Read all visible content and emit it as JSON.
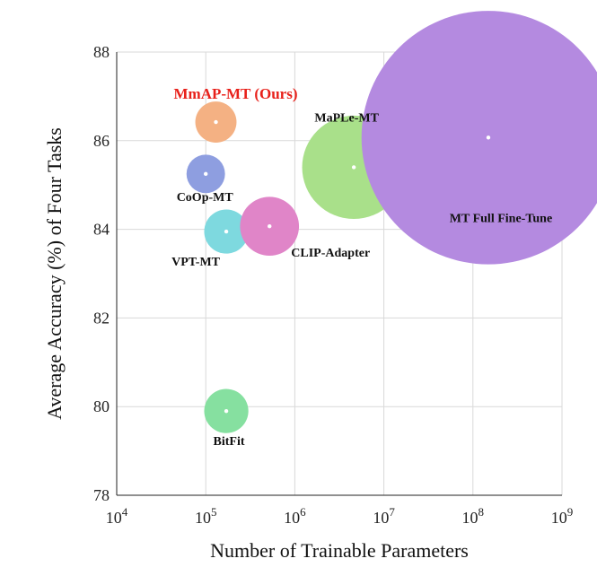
{
  "chart_data": {
    "type": "scatter",
    "xlabel": "Number of Trainable Parameters",
    "ylabel": "Average Accuracy (%) of Four Tasks",
    "x_scale": "log",
    "xlim": [
      10000,
      1000000000
    ],
    "ylim": [
      78,
      88
    ],
    "x_ticks": [
      {
        "base": "10",
        "exp": "4",
        "value": 10000
      },
      {
        "base": "10",
        "exp": "5",
        "value": 100000
      },
      {
        "base": "10",
        "exp": "6",
        "value": 1000000
      },
      {
        "base": "10",
        "exp": "7",
        "value": 10000000
      },
      {
        "base": "10",
        "exp": "8",
        "value": 100000000
      },
      {
        "base": "10",
        "exp": "9",
        "value": 1000000000
      }
    ],
    "y_ticks": [
      "78",
      "80",
      "82",
      "84",
      "86",
      "88"
    ],
    "grid": true,
    "points": [
      {
        "label": "MmAP-MT (Ours)",
        "x": 130000,
        "y": 86.42,
        "color": "#f4b183",
        "highlight": true
      },
      {
        "label": "CoOp-MT",
        "x": 100000,
        "y": 85.25,
        "color": "#8e9ee0",
        "highlight": false
      },
      {
        "label": "VPT-MT",
        "x": 170000,
        "y": 83.95,
        "color": "#7ed9df",
        "highlight": false
      },
      {
        "label": "CLIP-Adapter",
        "x": 520000,
        "y": 84.07,
        "color": "#e085c8",
        "highlight": false
      },
      {
        "label": "MaPLe-MT",
        "x": 4600000,
        "y": 85.4,
        "color": "#a9e08a",
        "highlight": false
      },
      {
        "label": "MT Full Fine-Tune",
        "x": 149000000,
        "y": 86.07,
        "color": "#b48ae0",
        "highlight": false
      },
      {
        "label": "BitFit",
        "x": 170000,
        "y": 79.9,
        "color": "#86e0a0",
        "highlight": false
      }
    ]
  }
}
